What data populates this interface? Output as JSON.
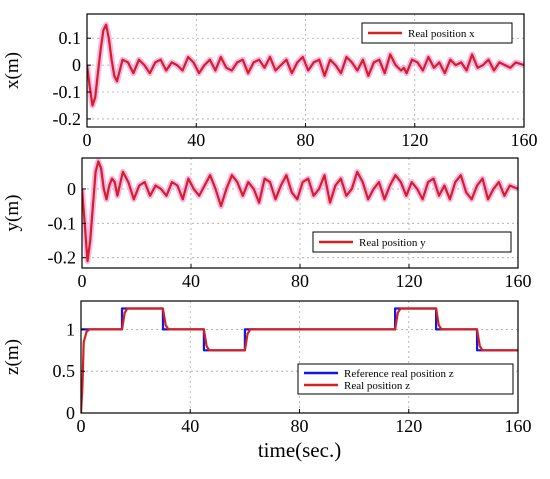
{
  "chart_data": [
    {
      "type": "line",
      "ylabel": "x(m)",
      "xlabel": "",
      "xlim": [
        0,
        160
      ],
      "ylim": [
        -0.23,
        0.19
      ],
      "xticks": [
        0,
        40,
        80,
        120,
        160
      ],
      "yticks": [
        -0.2,
        -0.1,
        0,
        0.1
      ],
      "ytick_labels": [
        "-0.2",
        "-0.1",
        "0",
        "0.1"
      ],
      "grid": true,
      "legend_position": "top-right",
      "series": [
        {
          "name": "Real position x",
          "color": "#d62020",
          "glow": "#f2a6ea",
          "x": [
            0,
            1,
            2,
            3,
            4,
            5,
            6,
            7,
            8,
            9,
            10,
            11,
            12,
            13,
            15,
            17,
            19,
            21,
            23,
            25,
            27,
            29,
            31,
            33,
            35,
            37,
            39,
            41,
            43,
            45,
            47,
            49,
            51,
            53,
            55,
            57,
            59,
            61,
            63,
            65,
            67,
            69,
            71,
            73,
            75,
            77,
            79,
            81,
            83,
            85,
            87,
            89,
            91,
            93,
            95,
            97,
            99,
            101,
            103,
            105,
            107,
            109,
            111,
            113,
            115,
            116,
            117,
            119,
            121,
            123,
            125,
            127,
            129,
            131,
            133,
            135,
            137,
            139,
            141,
            143,
            145,
            147,
            149,
            151,
            153,
            155,
            157,
            160
          ],
          "y": [
            0,
            -0.08,
            -0.15,
            -0.12,
            -0.03,
            0.06,
            0.13,
            0.15,
            0.1,
            0.02,
            -0.04,
            -0.06,
            -0.02,
            0.02,
            0.01,
            -0.03,
            0.02,
            0.0,
            -0.03,
            0.01,
            0.02,
            -0.02,
            0.01,
            0.0,
            -0.02,
            0.03,
            0.01,
            -0.03,
            0.0,
            0.02,
            -0.02,
            0.03,
            -0.01,
            -0.02,
            0.01,
            0.02,
            -0.03,
            0.01,
            0.02,
            -0.01,
            0.03,
            -0.02,
            0.0,
            0.02,
            -0.03,
            0.01,
            0.03,
            -0.02,
            0.01,
            0.02,
            -0.04,
            0.02,
            0.0,
            -0.03,
            0.03,
            0.01,
            -0.02,
            0.02,
            -0.04,
            0.01,
            0.02,
            -0.03,
            0.04,
            0.0,
            -0.02,
            -0.01,
            -0.03,
            0.02,
            0.01,
            -0.02,
            0.03,
            -0.01,
            0.01,
            -0.03,
            0.02,
            0.0,
            0.01,
            -0.02,
            0.04,
            -0.01,
            0.0,
            0.02,
            -0.02,
            0.01,
            0.0,
            -0.01,
            0.01,
            0.0
          ]
        }
      ]
    },
    {
      "type": "line",
      "ylabel": "y(m)",
      "xlabel": "",
      "xlim": [
        0,
        160
      ],
      "ylim": [
        -0.23,
        0.09
      ],
      "xticks": [
        0,
        40,
        80,
        120,
        160
      ],
      "yticks": [
        -0.2,
        -0.1,
        0
      ],
      "ytick_labels": [
        "-0.2",
        "-0.1",
        "0"
      ],
      "grid": true,
      "legend_position": "bottom-right",
      "series": [
        {
          "name": "Real position y",
          "color": "#d62020",
          "glow": "#f2a6ea",
          "x": [
            0,
            1,
            2,
            3,
            4,
            5,
            6,
            7,
            8,
            9,
            10,
            11,
            12,
            13,
            15,
            17,
            19,
            21,
            23,
            25,
            27,
            29,
            31,
            33,
            35,
            37,
            39,
            41,
            43,
            45,
            47,
            49,
            51,
            53,
            55,
            57,
            59,
            61,
            63,
            65,
            67,
            69,
            71,
            73,
            75,
            77,
            79,
            81,
            83,
            85,
            87,
            89,
            91,
            93,
            95,
            97,
            99,
            101,
            103,
            105,
            107,
            109,
            111,
            113,
            115,
            117,
            119,
            121,
            123,
            125,
            127,
            129,
            131,
            133,
            135,
            137,
            139,
            141,
            143,
            145,
            147,
            149,
            151,
            153,
            155,
            157,
            160
          ],
          "y": [
            0,
            -0.1,
            -0.21,
            -0.15,
            -0.05,
            0.05,
            0.08,
            0.06,
            0.0,
            -0.03,
            0.01,
            0.03,
            0.02,
            -0.02,
            0.05,
            0.02,
            -0.03,
            0.01,
            0.02,
            -0.02,
            0.01,
            0.0,
            -0.02,
            0.02,
            0.01,
            -0.03,
            0.03,
            0.0,
            -0.02,
            0.01,
            0.04,
            0.0,
            -0.05,
            0.0,
            0.04,
            0.02,
            -0.02,
            0.02,
            0.0,
            -0.04,
            0.03,
            0.02,
            -0.03,
            0.01,
            0.04,
            -0.01,
            -0.03,
            0.02,
            0.03,
            -0.02,
            0.0,
            0.04,
            -0.04,
            0.01,
            0.03,
            -0.02,
            0.0,
            0.05,
            0.02,
            -0.03,
            0.0,
            0.02,
            -0.03,
            0.01,
            0.04,
            0.02,
            -0.02,
            0.02,
            0.0,
            -0.03,
            0.02,
            0.03,
            -0.02,
            0.01,
            -0.03,
            0.02,
            0.04,
            -0.01,
            -0.03,
            0.01,
            0.03,
            -0.03,
            0.0,
            0.02,
            -0.02,
            0.01,
            0.0
          ]
        }
      ]
    },
    {
      "type": "line",
      "ylabel": "z(m)",
      "xlabel": "time(sec.)",
      "xlim": [
        0,
        160
      ],
      "ylim": [
        0,
        1.34
      ],
      "xticks": [
        0,
        40,
        80,
        120,
        160
      ],
      "yticks": [
        0,
        0.5,
        1
      ],
      "ytick_labels": [
        "0",
        "0.5",
        "1"
      ],
      "grid": true,
      "legend_position": "bottom-right",
      "series": [
        {
          "name": "Reference real position z",
          "color": "#1515e6",
          "x": [
            0,
            0.01,
            15,
            15.01,
            30,
            30.01,
            45,
            45.01,
            60,
            60.01,
            115,
            115.01,
            130,
            130.01,
            145,
            145.01,
            160
          ],
          "y": [
            1,
            1,
            1,
            1.25,
            1.25,
            1,
            1,
            0.75,
            0.75,
            1,
            1,
            1.25,
            1.25,
            1,
            1,
            0.75,
            0.75
          ]
        },
        {
          "name": "Real  position z",
          "color": "#d62020",
          "x": [
            0,
            0.5,
            1,
            2,
            3,
            15,
            16,
            17,
            30,
            31,
            32,
            45,
            46,
            47,
            60,
            61,
            62,
            115,
            116,
            117,
            130,
            131,
            132,
            145,
            146,
            147,
            160
          ],
          "y": [
            0,
            0.3,
            0.85,
            0.97,
            1.0,
            1.0,
            1.2,
            1.25,
            1.25,
            1.05,
            1.0,
            1.0,
            0.8,
            0.75,
            0.75,
            0.95,
            1.0,
            1.0,
            1.2,
            1.25,
            1.25,
            1.05,
            1.0,
            1.0,
            0.8,
            0.75,
            0.75
          ]
        }
      ]
    }
  ]
}
